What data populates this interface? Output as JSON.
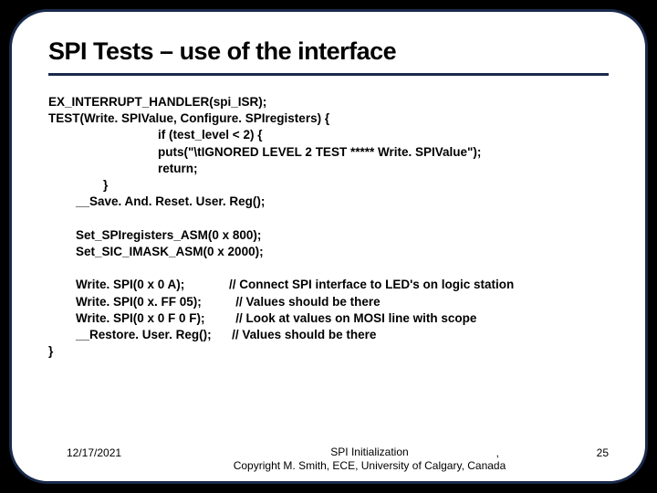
{
  "title": {
    "text": "SPI Tests – use of the interface",
    "fontsize": 27
  },
  "code": {
    "fontsize": 13.5,
    "lines": [
      "EX_INTERRUPT_HANDLER(spi_ISR);",
      "TEST(Write. SPIValue, Configure. SPIregisters) {",
      "                                if (test_level < 2) {",
      "                                puts(\"\\tIGNORED LEVEL 2 TEST ***** Write. SPIValue\");",
      "                                return;",
      "                }",
      "        __Save. And. Reset. User. Reg();",
      "",
      "        Set_SPIregisters_ASM(0 x 800);",
      "        Set_SIC_IMASK_ASM(0 x 2000);",
      "",
      "        Write. SPI(0 x 0 A);             // Connect SPI interface to LED's on logic station",
      "        Write. SPI(0 x. FF 05);          // Values should be there",
      "        Write. SPI(0 x 0 F 0 F);         // Look at values on MOSI line with scope",
      "        __Restore. User. Reg();      // Values should be there",
      "}"
    ]
  },
  "footer": {
    "date": "12/17/2021",
    "center_line1": "SPI Initialization",
    "center_line2": "Copyright M. Smith, ECE, University of Calgary, Canada",
    "page": "25",
    "fontsize": 12
  },
  "colors": {
    "slide_bg": "#ffffff",
    "outer_bg": "#000000",
    "border": "#1a2a4a",
    "text": "#000000"
  }
}
